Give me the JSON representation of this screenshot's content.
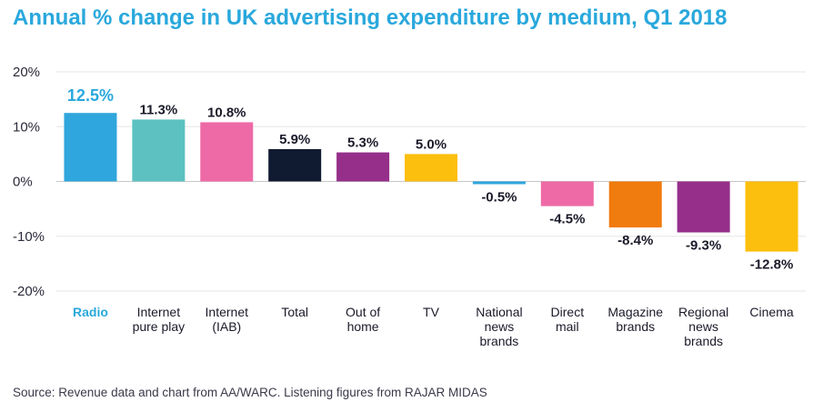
{
  "chart_data": {
    "type": "bar",
    "title": "Annual % change in UK advertising expenditure by medium, Q1 2018",
    "categories": [
      [
        "Radio"
      ],
      [
        "Internet",
        "pure play"
      ],
      [
        "Internet",
        "(IAB)"
      ],
      [
        "Total"
      ],
      [
        "Out of",
        "home"
      ],
      [
        "TV"
      ],
      [
        "National",
        "news",
        "brands"
      ],
      [
        "Direct",
        "mail"
      ],
      [
        "Magazine",
        "brands"
      ],
      [
        "Regional",
        "news",
        "brands"
      ],
      [
        "Cinema"
      ]
    ],
    "values": [
      12.5,
      11.3,
      10.8,
      5.9,
      5.3,
      5.0,
      -0.5,
      -4.5,
      -8.4,
      -9.3,
      -12.8
    ],
    "value_labels": [
      "12.5%",
      "11.3%",
      "10.8%",
      "5.9%",
      "5.3%",
      "5.0%",
      "-0.5%",
      "-4.5%",
      "-8.4%",
      "-9.3%",
      "-12.8%"
    ],
    "colors": [
      "#2fa6dd",
      "#5cc1c0",
      "#ee6aa6",
      "#101a30",
      "#952f8a",
      "#fcbf0e",
      "#2fa6dd",
      "#ee6aa6",
      "#f07b0e",
      "#952f8a",
      "#fcbf0e"
    ],
    "highlight_index": 0,
    "highlight_color": "#29a8dc",
    "ylim": [
      -20,
      20
    ],
    "yticks": [
      20,
      10,
      0,
      -10,
      -20
    ],
    "ytick_labels": [
      "20%",
      "10%",
      "0%",
      "-10%",
      "-20%"
    ],
    "grid": true,
    "xlabel": "",
    "ylabel": ""
  },
  "source": "Source: Revenue data and chart from AA/WARC. Listening figures from RAJAR MIDAS"
}
